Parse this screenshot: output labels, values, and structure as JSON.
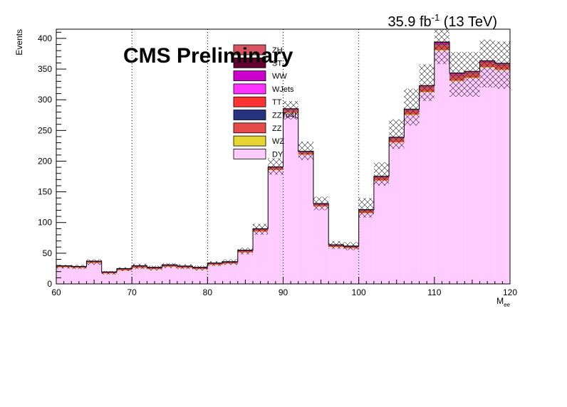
{
  "chart_data": {
    "type": "bar",
    "stacked": true,
    "xlabel": "M",
    "xlabel_sub": "ee",
    "ylabel": "Events",
    "xlim": [
      60,
      120
    ],
    "ylim": [
      0,
      415
    ],
    "x_ticks": [
      60,
      70,
      80,
      90,
      100,
      110,
      120
    ],
    "y_ticks": [
      0,
      50,
      100,
      150,
      200,
      250,
      300,
      350,
      400
    ],
    "vertical_dotted_lines": [
      70,
      80,
      90,
      100
    ],
    "annotation_cms": "CMS Preliminary",
    "annotation_lumi_value": "35.9 fb",
    "annotation_lumi_exp": "-1",
    "annotation_lumi_energy": "(13 TeV)",
    "bin_edges": [
      60,
      62,
      64,
      66,
      68,
      70,
      72,
      74,
      76,
      78,
      80,
      82,
      84,
      86,
      88,
      90,
      92,
      94,
      96,
      98,
      100,
      102,
      104,
      106,
      108,
      110,
      112,
      114,
      116,
      118,
      120
    ],
    "legend": [
      {
        "name": "ZH",
        "color": "#d95463"
      },
      {
        "name": "ST",
        "color": "#660033"
      },
      {
        "name": "WW",
        "color": "#cc00cc"
      },
      {
        "name": "WJets",
        "color": "#ff33ff"
      },
      {
        "name": "TT",
        "color": "#ff3333"
      },
      {
        "name": "ZZTo4L",
        "color": "#263380"
      },
      {
        "name": "ZZ",
        "color": "#e64a4a"
      },
      {
        "name": "WZ",
        "color": "#e6d633"
      },
      {
        "name": "DY",
        "color": "#ffccff"
      }
    ],
    "series": [
      {
        "name": "DY",
        "color": "#ffccff",
        "values": [
          27,
          26,
          34,
          17,
          22,
          26,
          24,
          28,
          26,
          24,
          31,
          33,
          51,
          85,
          185,
          278,
          210,
          126,
          60,
          58,
          115,
          168,
          230,
          275,
          312,
          380,
          330,
          335,
          352,
          348
        ]
      },
      {
        "name": "WZ",
        "color": "#e6d633",
        "values": [
          0.3,
          0.3,
          0.3,
          0.3,
          0.3,
          0.3,
          0.3,
          0.3,
          0.3,
          0.3,
          0.3,
          0.3,
          0.4,
          0.5,
          0.8,
          1,
          0.8,
          0.5,
          0.3,
          0.3,
          0.5,
          0.6,
          0.8,
          1,
          1,
          1.2,
          1.1,
          1.1,
          1.2,
          1.2
        ]
      },
      {
        "name": "ZZ",
        "color": "#e64a4a",
        "values": [
          1.5,
          1.5,
          2,
          1.5,
          2,
          2.5,
          2,
          2,
          2,
          2,
          2,
          2,
          2.5,
          3,
          3,
          4,
          3.5,
          3,
          2.5,
          2.5,
          4,
          5,
          6,
          6,
          7,
          8,
          8,
          7,
          7,
          7
        ]
      },
      {
        "name": "ZZTo4L",
        "color": "#263380",
        "values": [
          0.2,
          0.2,
          0.2,
          0.2,
          0.2,
          0.2,
          0.2,
          0.2,
          0.2,
          0.2,
          0.2,
          0.2,
          0.3,
          0.4,
          0.6,
          0.8,
          0.6,
          0.4,
          0.2,
          0.2,
          0.4,
          0.5,
          0.6,
          0.8,
          0.8,
          1,
          0.9,
          0.9,
          0.9,
          0.9
        ]
      },
      {
        "name": "TT",
        "color": "#ff3333",
        "values": [
          0.3,
          0.3,
          0.3,
          0.3,
          0.3,
          0.4,
          0.3,
          0.3,
          0.3,
          0.3,
          0.4,
          0.4,
          0.4,
          0.5,
          0.6,
          0.7,
          0.6,
          0.5,
          0.5,
          0.5,
          0.6,
          0.7,
          0.8,
          0.9,
          1,
          1.1,
          1.1,
          1.1,
          1.2,
          1.2
        ]
      },
      {
        "name": "WJets",
        "color": "#ff33ff",
        "values": [
          0,
          0,
          0,
          0,
          0,
          0,
          0,
          0,
          0,
          0,
          0,
          0,
          0,
          0,
          0,
          0,
          0,
          0,
          0,
          0,
          0,
          0,
          0,
          0,
          0,
          0,
          0,
          0,
          0,
          0
        ]
      },
      {
        "name": "WW",
        "color": "#cc00cc",
        "values": [
          0.2,
          0.2,
          0.2,
          0.2,
          0.2,
          0.2,
          0.2,
          0.2,
          0.2,
          0.2,
          0.2,
          0.2,
          0.3,
          0.4,
          0.5,
          0.7,
          0.5,
          0.4,
          0.2,
          0.2,
          0.4,
          0.5,
          0.6,
          0.8,
          1,
          2,
          1.5,
          0.8,
          0.8,
          0.8
        ]
      },
      {
        "name": "ST",
        "color": "#660033",
        "values": [
          0.1,
          0.1,
          0.1,
          0.1,
          0.1,
          0.1,
          0.1,
          0.1,
          0.1,
          0.1,
          0.1,
          0.1,
          0.1,
          0.2,
          0.2,
          0.3,
          0.2,
          0.2,
          0.1,
          0.1,
          0.2,
          0.2,
          0.3,
          0.3,
          0.3,
          0.4,
          0.4,
          0.4,
          0.4,
          0.4
        ]
      },
      {
        "name": "ZH",
        "color": "#d95463",
        "values": [
          0,
          0,
          0,
          0,
          0,
          0,
          0,
          0,
          0,
          0,
          0,
          0,
          0,
          0,
          0,
          0,
          0,
          0,
          0,
          0,
          0,
          0,
          0,
          0,
          0,
          0.5,
          0.5,
          0,
          0,
          0
        ]
      }
    ],
    "uncertainty_band": {
      "low": [
        25,
        24,
        31,
        15,
        21,
        24,
        22,
        26,
        24,
        22,
        29,
        31,
        48,
        80,
        178,
        268,
        202,
        120,
        57,
        55,
        108,
        160,
        220,
        258,
        298,
        358,
        305,
        305,
        320,
        318
      ],
      "high": [
        31,
        31,
        40,
        21,
        27,
        33,
        30,
        34,
        32,
        30,
        37,
        40,
        59,
        98,
        205,
        298,
        232,
        142,
        70,
        68,
        140,
        198,
        268,
        318,
        358,
        425,
        378,
        378,
        398,
        395
      ]
    }
  }
}
